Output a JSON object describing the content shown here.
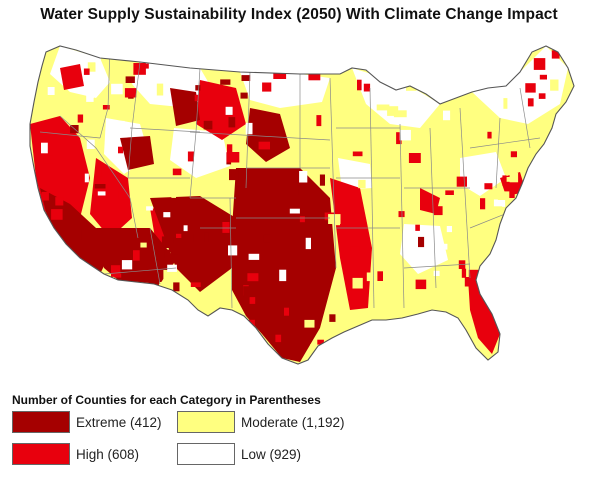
{
  "title": "Water Supply Sustainability Index (2050) With Climate Change Impact",
  "legend": {
    "heading": "Number of Counties for each Category in Parentheses",
    "items": [
      {
        "key": "extreme",
        "label": "Extreme (412)",
        "color": "#a50000"
      },
      {
        "key": "moderate",
        "label": "Moderate (1,192)",
        "color": "#ffff80"
      },
      {
        "key": "high",
        "label": "High (608)",
        "color": "#e8000d"
      },
      {
        "key": "low",
        "label": "Low (929)",
        "color": "#ffffff"
      }
    ]
  },
  "map": {
    "subject": "contiguous-united-states-counties",
    "colors": {
      "extreme": "#a50000",
      "high": "#e8000d",
      "moderate": "#ffff80",
      "low": "#ffffff",
      "border": "#7a7a7a"
    }
  }
}
